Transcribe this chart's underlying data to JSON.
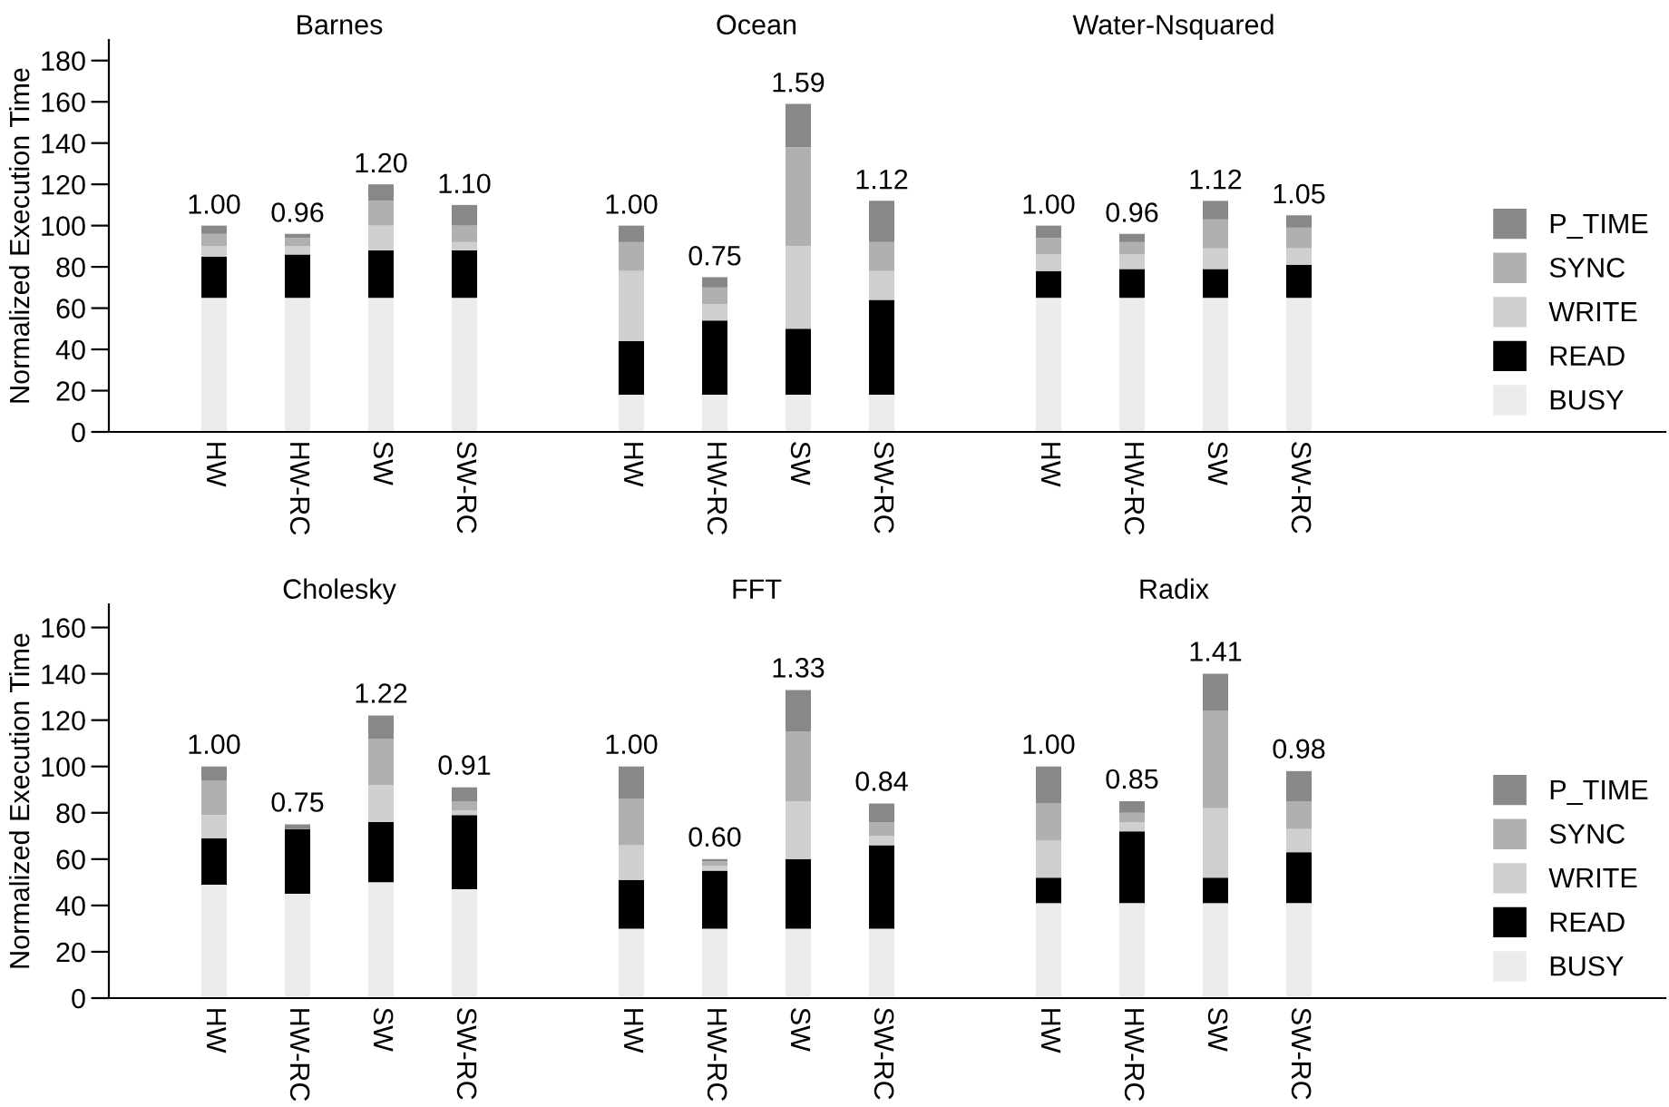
{
  "chart_data": [
    {
      "type": "bar",
      "ylabel": "Normalized Execution Time",
      "stacked": true,
      "legend": "bottom right",
      "categories": [
        "HW",
        "HW-RC",
        "SW",
        "SW-RC",
        null,
        "HW",
        "HW-RC",
        "SW",
        "SW-RC",
        null,
        "HW",
        "HW-RC",
        "SW",
        "SW-RC"
      ],
      "ylim": [
        0,
        190
      ],
      "yticks": [
        0,
        20,
        40,
        60,
        80,
        100,
        120,
        140,
        160,
        180
      ],
      "annotations": [
        "Barnes",
        "Ocean",
        "Water-Nsquared",
        "1.00",
        "0.96",
        "1.20",
        "1.10",
        "1.00",
        "0.75",
        "1.59",
        "1.12",
        "1.00",
        "0.96",
        "1.12",
        "1.05"
      ],
      "series": [
        {
          "name": "BUSY",
          "color": "#ececec",
          "values": [
            65,
            65,
            65,
            65,
            null,
            18,
            18,
            18,
            18,
            null,
            65,
            65,
            65,
            65
          ]
        },
        {
          "name": "READ",
          "color": "#000000",
          "values": [
            20,
            21,
            23,
            23,
            null,
            26,
            36,
            32,
            46,
            null,
            13,
            14,
            14,
            16
          ]
        },
        {
          "name": "WRITE",
          "color": "#cfcfcf",
          "values": [
            5,
            4,
            12,
            4,
            null,
            34,
            8,
            40,
            14,
            null,
            8,
            7,
            10,
            8
          ]
        },
        {
          "name": "SYNC",
          "color": "#b0b0b0",
          "values": [
            6,
            4,
            12,
            8,
            null,
            14,
            8,
            48,
            14,
            null,
            8,
            6,
            14,
            10
          ]
        },
        {
          "name": "P_TIME",
          "color": "#888888",
          "values": [
            4,
            2,
            8,
            10,
            null,
            8,
            5,
            21,
            20,
            null,
            6,
            4,
            9,
            6
          ]
        }
      ]
    },
    {
      "type": "bar",
      "ylabel": "Normalized Execution Time",
      "stacked": true,
      "legend": "bottom right",
      "categories": [
        "HW",
        "HW-RC",
        "SW",
        "SW-RC",
        null,
        "HW",
        "HW-RC",
        "SW",
        "SW-RC",
        null,
        "HW",
        "HW-RC",
        "SW",
        "SW-RC"
      ],
      "ylim": [
        0,
        170
      ],
      "yticks": [
        0,
        20,
        40,
        60,
        80,
        100,
        120,
        140,
        160
      ],
      "annotations": [
        "Cholesky",
        "FFT",
        "Radix",
        "1.00",
        "0.75",
        "1.22",
        "0.91",
        "1.00",
        "0.60",
        "1.33",
        "0.84",
        "1.00",
        "0.85",
        "1.41",
        "0.98"
      ],
      "series": [
        {
          "name": "BUSY",
          "color": "#ececec",
          "values": [
            49,
            45,
            50,
            47,
            null,
            30,
            30,
            30,
            30,
            null,
            41,
            41,
            41,
            41
          ]
        },
        {
          "name": "READ",
          "color": "#000000",
          "values": [
            20,
            28,
            26,
            32,
            null,
            21,
            25,
            30,
            36,
            null,
            11,
            31,
            11,
            22
          ]
        },
        {
          "name": "WRITE",
          "color": "#cfcfcf",
          "values": [
            10,
            null,
            16,
            2,
            null,
            15,
            2,
            25,
            4,
            null,
            16,
            4,
            30,
            10
          ]
        },
        {
          "name": "SYNC",
          "color": "#b0b0b0",
          "values": [
            15,
            null,
            20,
            4,
            null,
            20,
            2,
            30,
            6,
            null,
            16,
            4,
            42,
            12
          ]
        },
        {
          "name": "P_TIME",
          "color": "#888888",
          "values": [
            6,
            2,
            10,
            6,
            null,
            14,
            1,
            18,
            8,
            null,
            16,
            5,
            16,
            13
          ]
        }
      ]
    }
  ]
}
